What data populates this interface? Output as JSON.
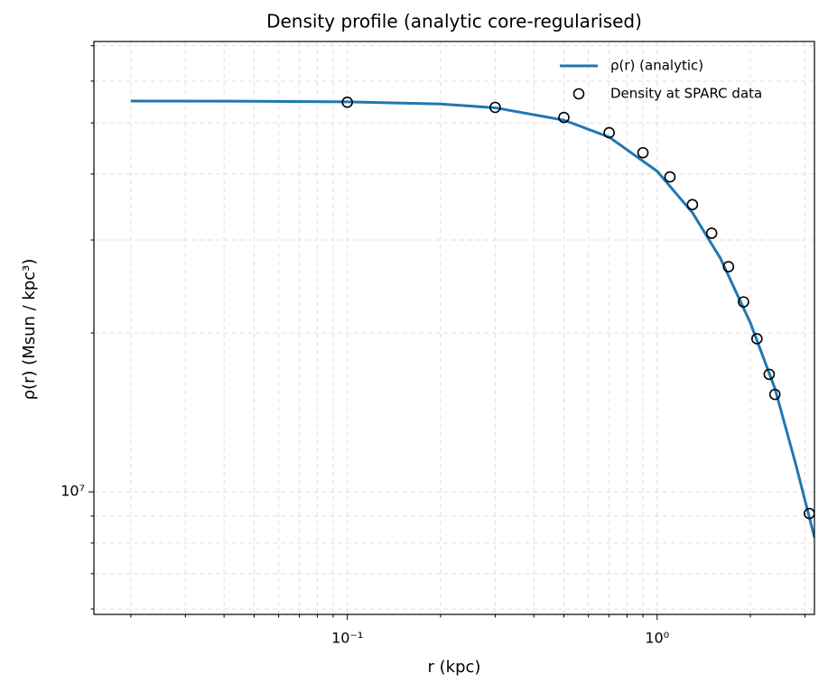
{
  "chart_data": {
    "type": "line",
    "title": "Density profile (analytic core-regularised)",
    "xlabel": "r (kpc)",
    "ylabel": "ρ(r) (Msun / kpc³)",
    "xscale": "log",
    "yscale": "log",
    "xlim": [
      0.0152,
      3.22
    ],
    "ylim": [
      5860000,
      71300000
    ],
    "xticks": [
      {
        "value": 0.1,
        "label": "10⁻¹"
      },
      {
        "value": 1,
        "label": "10⁰"
      }
    ],
    "xminorticks": [
      0.02,
      0.03,
      0.04,
      0.05,
      0.06,
      0.07,
      0.08,
      0.09,
      0.2,
      0.3,
      0.4,
      0.5,
      0.6,
      0.7,
      0.8,
      0.9,
      2,
      3
    ],
    "yticks": [
      {
        "value": 10000000,
        "label": "10⁷"
      }
    ],
    "yminorticks": [
      6000000,
      7000000,
      8000000,
      9000000,
      20000000,
      30000000,
      40000000,
      50000000,
      60000000,
      70000000
    ],
    "grid": true,
    "legend": "upper right",
    "series": [
      {
        "name": "ρ(r) (analytic)",
        "color": "#1f77b4",
        "kind": "line",
        "x": [
          0.02,
          0.05,
          0.1,
          0.2,
          0.3,
          0.5,
          0.7,
          1.0,
          1.3,
          1.6,
          2.0,
          2.4,
          2.8,
          3.22
        ],
        "values": [
          55000000,
          54950000,
          54800000,
          54300000,
          53400000,
          50600000,
          47000000,
          40500000,
          33800000,
          27700000,
          20900000,
          15700000,
          11300000,
          8200000
        ]
      },
      {
        "name": "Density at SPARC data",
        "color": "#000000",
        "kind": "scatter",
        "x": [
          0.1,
          0.3,
          0.5,
          0.7,
          0.9,
          1.1,
          1.3,
          1.5,
          1.7,
          1.9,
          2.1,
          2.3,
          2.4,
          3.1
        ],
        "values": [
          54700000,
          53500000,
          51200000,
          47900000,
          43900000,
          39500000,
          35000000,
          30900000,
          26700000,
          22900000,
          19500000,
          16700000,
          15300000,
          9100000
        ]
      }
    ]
  }
}
